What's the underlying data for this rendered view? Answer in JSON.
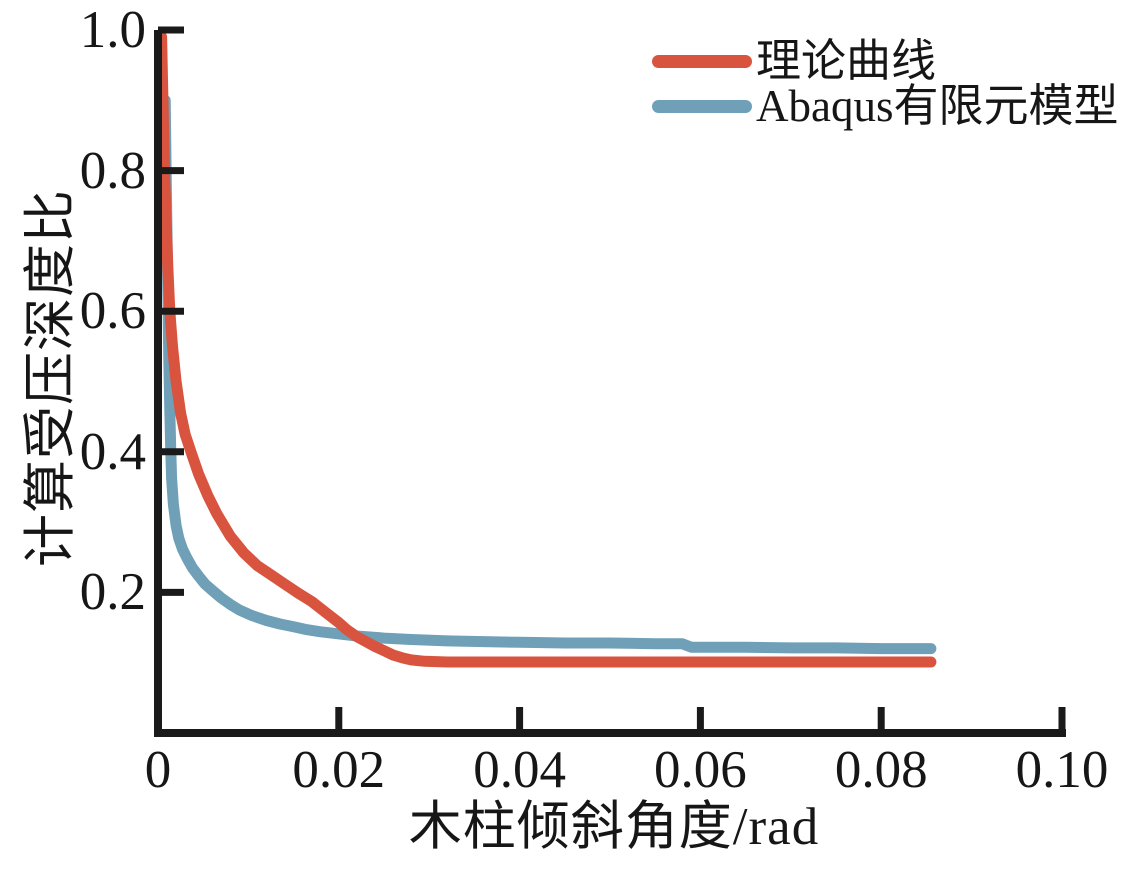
{
  "figure": {
    "background": "#ffffff",
    "text_color": "#161616",
    "axis_color": "#1a1a1a"
  },
  "chart_data": {
    "type": "line",
    "title": "",
    "xlabel": "木柱倾斜角度/rad",
    "ylabel": "计算受压深度比",
    "xlim": [
      0,
      0.1
    ],
    "ylim": [
      0,
      1.0
    ],
    "grid": false,
    "legend_position": "top-right",
    "xticks": [
      {
        "v": 0,
        "label": "0"
      },
      {
        "v": 0.02,
        "label": "0.02"
      },
      {
        "v": 0.04,
        "label": "0.04"
      },
      {
        "v": 0.06,
        "label": "0.06"
      },
      {
        "v": 0.08,
        "label": "0.08"
      },
      {
        "v": 0.1,
        "label": "0.10"
      }
    ],
    "yticks": [
      {
        "v": 0.2,
        "label": "0.2"
      },
      {
        "v": 0.4,
        "label": "0.4"
      },
      {
        "v": 0.6,
        "label": "0.6"
      },
      {
        "v": 0.8,
        "label": "0.8"
      },
      {
        "v": 1.0,
        "label": "1.0"
      }
    ],
    "series": [
      {
        "name": "理论曲线",
        "color": "#d8543f",
        "points": [
          [
            0.0004,
            0.99
          ],
          [
            0.0005,
            0.93
          ],
          [
            0.0006,
            0.87
          ],
          [
            0.0007,
            0.81
          ],
          [
            0.0009,
            0.73
          ],
          [
            0.0011,
            0.66
          ],
          [
            0.0013,
            0.6
          ],
          [
            0.0016,
            0.55
          ],
          [
            0.002,
            0.5
          ],
          [
            0.0025,
            0.455
          ],
          [
            0.003,
            0.425
          ],
          [
            0.0037,
            0.398
          ],
          [
            0.0045,
            0.368
          ],
          [
            0.0055,
            0.338
          ],
          [
            0.0065,
            0.312
          ],
          [
            0.008,
            0.28
          ],
          [
            0.0095,
            0.256
          ],
          [
            0.011,
            0.238
          ],
          [
            0.0125,
            0.225
          ],
          [
            0.014,
            0.212
          ],
          [
            0.0155,
            0.199
          ],
          [
            0.017,
            0.187
          ],
          [
            0.0185,
            0.172
          ],
          [
            0.02,
            0.157
          ],
          [
            0.0209,
            0.147
          ],
          [
            0.022,
            0.137
          ],
          [
            0.023,
            0.13
          ],
          [
            0.024,
            0.123
          ],
          [
            0.025,
            0.117
          ],
          [
            0.026,
            0.111
          ],
          [
            0.027,
            0.107
          ],
          [
            0.028,
            0.104
          ],
          [
            0.0295,
            0.102
          ],
          [
            0.032,
            0.101
          ],
          [
            0.04,
            0.101
          ],
          [
            0.05,
            0.101
          ],
          [
            0.06,
            0.101
          ],
          [
            0.07,
            0.101
          ],
          [
            0.08,
            0.101
          ],
          [
            0.0855,
            0.101
          ]
        ]
      },
      {
        "name": "Abaqus有限元模型",
        "color": "#6fa0b8",
        "points": [
          [
            0.0008,
            0.9
          ],
          [
            0.0009,
            0.8
          ],
          [
            0.001,
            0.71
          ],
          [
            0.0011,
            0.62
          ],
          [
            0.0012,
            0.53
          ],
          [
            0.0013,
            0.46
          ],
          [
            0.0014,
            0.405
          ],
          [
            0.0015,
            0.362
          ],
          [
            0.0017,
            0.325
          ],
          [
            0.002,
            0.295
          ],
          [
            0.0023,
            0.277
          ],
          [
            0.0027,
            0.262
          ],
          [
            0.0032,
            0.249
          ],
          [
            0.0038,
            0.235
          ],
          [
            0.0045,
            0.223
          ],
          [
            0.0052,
            0.212
          ],
          [
            0.006,
            0.203
          ],
          [
            0.007,
            0.192
          ],
          [
            0.008,
            0.183
          ],
          [
            0.009,
            0.175
          ],
          [
            0.0104,
            0.167
          ],
          [
            0.012,
            0.16
          ],
          [
            0.0135,
            0.155
          ],
          [
            0.015,
            0.151
          ],
          [
            0.0165,
            0.147
          ],
          [
            0.018,
            0.144
          ],
          [
            0.02,
            0.141
          ],
          [
            0.022,
            0.138
          ],
          [
            0.025,
            0.135
          ],
          [
            0.028,
            0.133
          ],
          [
            0.032,
            0.131
          ],
          [
            0.036,
            0.13
          ],
          [
            0.04,
            0.129
          ],
          [
            0.045,
            0.128
          ],
          [
            0.05,
            0.128
          ],
          [
            0.055,
            0.127
          ],
          [
            0.058,
            0.127
          ],
          [
            0.059,
            0.122
          ],
          [
            0.065,
            0.122
          ],
          [
            0.07,
            0.121
          ],
          [
            0.075,
            0.121
          ],
          [
            0.08,
            0.12
          ],
          [
            0.0855,
            0.12
          ]
        ]
      }
    ]
  }
}
